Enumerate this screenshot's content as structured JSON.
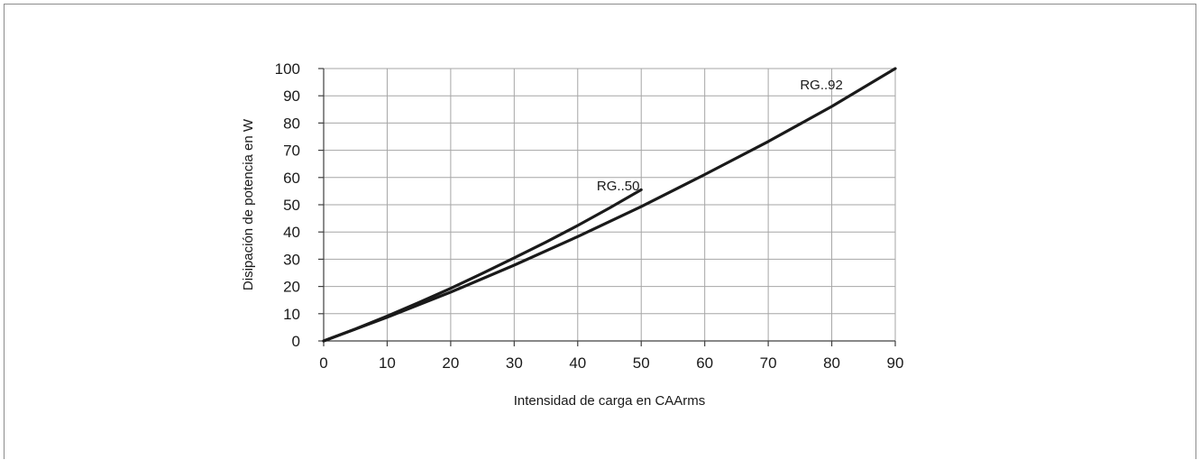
{
  "chart_data": {
    "type": "line",
    "title": "",
    "xlabel": "Intensidad de carga en CAArms",
    "ylabel": "Disipación de potencia en W",
    "xlim": [
      0,
      90
    ],
    "ylim": [
      0,
      100
    ],
    "x_ticks": [
      0,
      10,
      20,
      30,
      40,
      50,
      60,
      70,
      80,
      90
    ],
    "x_tick_labels": [
      "0",
      "10",
      "20",
      "30",
      "40",
      "50",
      "60",
      "70",
      "80",
      "90"
    ],
    "y_ticks": [
      0,
      10,
      20,
      30,
      40,
      50,
      60,
      70,
      80,
      90,
      100
    ],
    "y_tick_labels": [
      "0",
      "10",
      "20",
      "30",
      "40",
      "50",
      "60",
      "70",
      "80",
      "90",
      "100"
    ],
    "grid": true,
    "legend": "none",
    "line_color": "#1a1a1a",
    "grid_color": "#a6a6a6",
    "series": [
      {
        "name": "RG..50",
        "x": [
          0,
          5,
          10,
          15,
          20,
          25,
          30,
          35,
          40,
          45,
          50
        ],
        "y": [
          0,
          4.4,
          9.1,
          14.1,
          19.3,
          24.8,
          30.5,
          36.3,
          42.4,
          48.8,
          55.5
        ],
        "label_at": [
          43,
          57
        ]
      },
      {
        "name": "RG..92",
        "x": [
          0,
          10,
          20,
          30,
          40,
          50,
          60,
          70,
          80,
          90
        ],
        "y": [
          0,
          8.7,
          17.9,
          27.8,
          38.3,
          49.3,
          61.1,
          73.2,
          86.1,
          100
        ],
        "label_at": [
          75,
          94
        ]
      }
    ]
  }
}
